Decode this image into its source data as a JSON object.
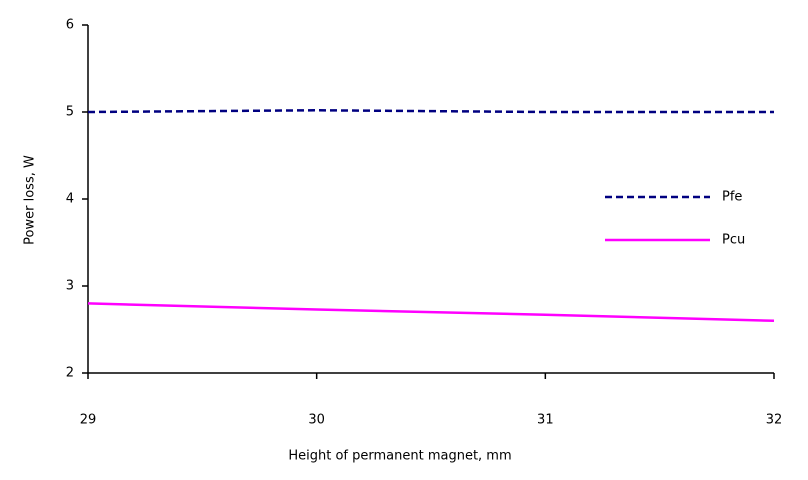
{
  "chart_data": {
    "type": "line",
    "x_label": "Height of permanent magnet, mm",
    "y_label": "Power loss, W",
    "x": [
      29,
      30,
      31,
      32
    ],
    "series": [
      {
        "name": "Pfe",
        "color": "#000080",
        "dashed": true,
        "values": [
          5.0,
          5.02,
          5.0,
          5.0
        ]
      },
      {
        "name": "Pcu",
        "color": "#ff00ff",
        "dashed": false,
        "values": [
          2.8,
          2.73,
          2.67,
          2.6
        ]
      }
    ],
    "xlim": [
      29,
      32
    ],
    "xticks": [
      29,
      30,
      31,
      32
    ],
    "ylim": [
      2,
      6
    ],
    "yticks": [
      2,
      3,
      4,
      5,
      6
    ],
    "grid": false,
    "legend": "right"
  }
}
